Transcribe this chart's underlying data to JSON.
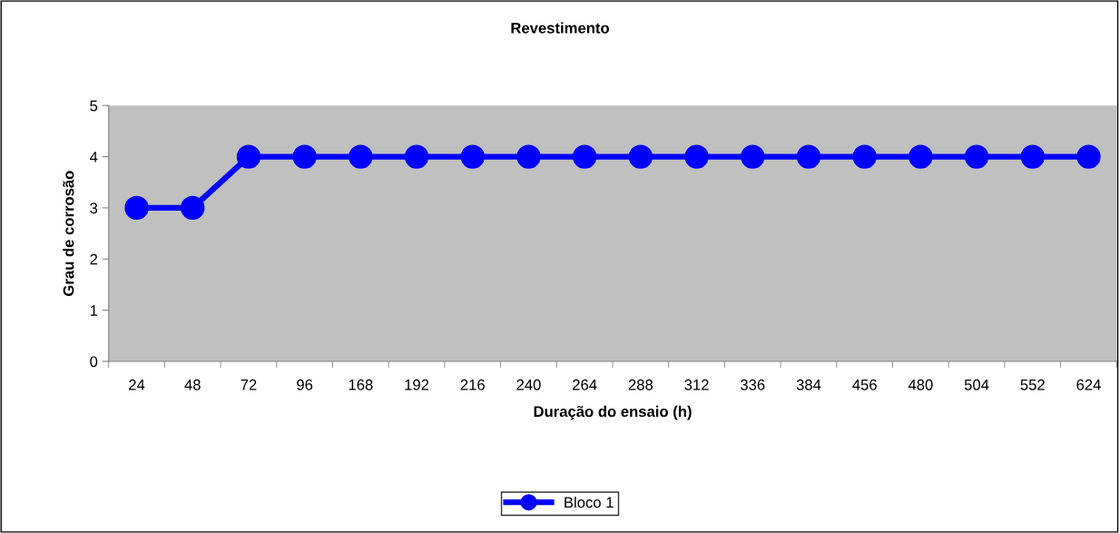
{
  "chart_data": {
    "type": "line",
    "title": "Revestimento",
    "xlabel": "Duração do ensaio (h)",
    "ylabel": "Grau de corrosão",
    "categories": [
      "24",
      "48",
      "72",
      "96",
      "168",
      "192",
      "216",
      "240",
      "264",
      "288",
      "312",
      "336",
      "384",
      "456",
      "480",
      "504",
      "552",
      "624"
    ],
    "series": [
      {
        "name": "Bloco 1",
        "color": "#0000ff",
        "values": [
          3,
          3,
          4,
          4,
          4,
          4,
          4,
          4,
          4,
          4,
          4,
          4,
          4,
          4,
          4,
          4,
          4,
          4
        ]
      }
    ],
    "ylim": [
      0,
      5
    ],
    "yticks": [
      0,
      1,
      2,
      3,
      4,
      5
    ],
    "grid": false,
    "legend": "bottom",
    "marker": "circle",
    "line_style": "solid"
  }
}
